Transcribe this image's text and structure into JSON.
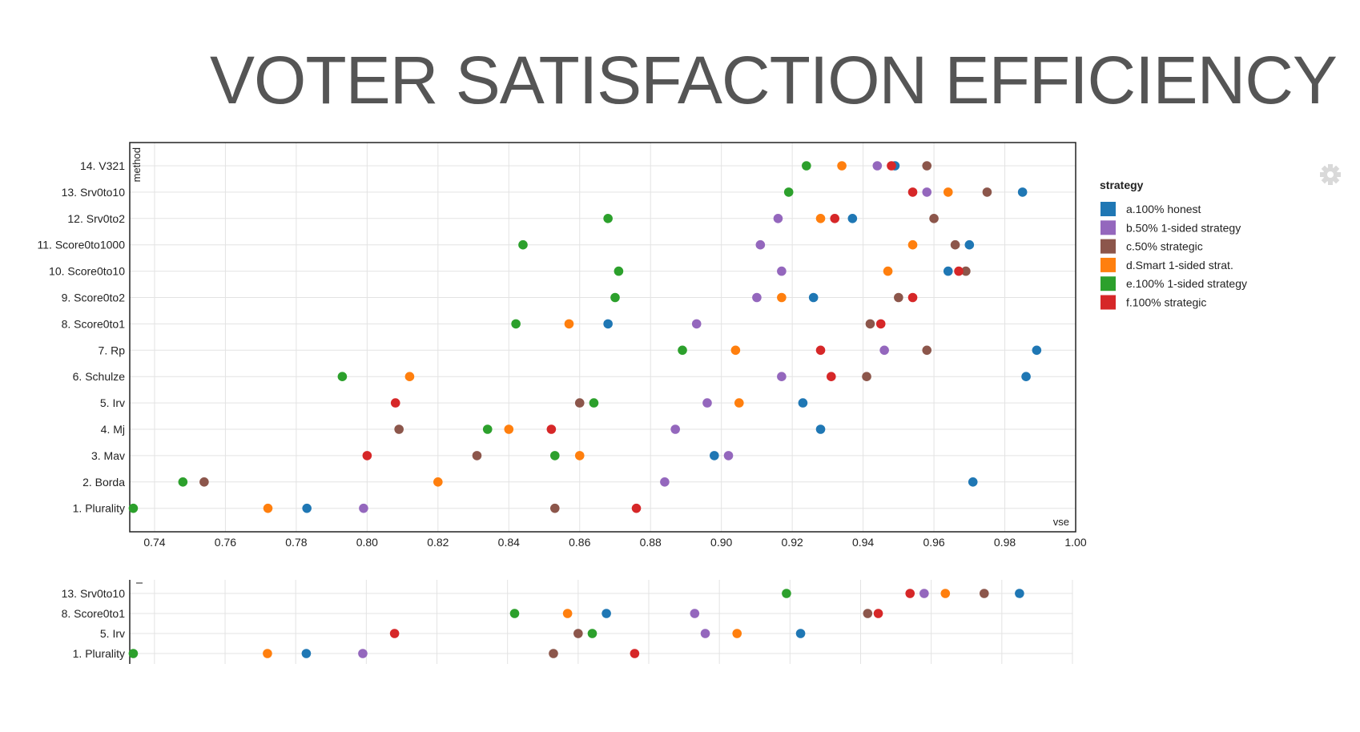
{
  "slide": {
    "title": "VOTER SATISFACTION EFFICIENCY"
  },
  "icons": {
    "settings": "gear-icon"
  },
  "colors": {
    "a.100% honest": "#1f77b4",
    "b.50% 1-sided strategy": "#9467bd",
    "c.50% strategic": "#8c564b",
    "d.Smart 1-sided strat.": "#ff7f0e",
    "e.100% 1-sided strategy": "#2ca02c",
    "f.100% strategic": "#d62728"
  },
  "legend": {
    "title": "strategy",
    "entries": [
      {
        "key": "a.100% honest",
        "label": "a.100% honest"
      },
      {
        "key": "b.50% 1-sided strategy",
        "label": "b.50% 1-sided strategy"
      },
      {
        "key": "c.50% strategic",
        "label": "c.50% strategic"
      },
      {
        "key": "d.Smart 1-sided strat.",
        "label": "d.Smart 1-sided strat."
      },
      {
        "key": "e.100% 1-sided strategy",
        "label": "e.100% 1-sided strategy"
      },
      {
        "key": "f.100% strategic",
        "label": "f.100% strategic"
      }
    ]
  },
  "chart_data": [
    {
      "type": "scatter",
      "xlabel": "vse",
      "ylabel": "method",
      "xlim": [
        0.733,
        1.0
      ],
      "xticks": [
        "0.74",
        "0.76",
        "0.78",
        "0.80",
        "0.82",
        "0.84",
        "0.86",
        "0.88",
        "0.90",
        "0.92",
        "0.94",
        "0.96",
        "0.98",
        "1.00"
      ],
      "grid": true,
      "legend_position": "right",
      "categories": [
        "14. V321",
        "13. Srv0to10",
        "12. Srv0to2",
        "11. Score0to1000",
        "10. Score0to10",
        "9. Score0to2",
        "8. Score0to1",
        "7. Rp",
        "6. Schulze",
        "5. Irv",
        "4. Mj",
        "3. Mav",
        "2. Borda",
        "1. Plurality"
      ],
      "series": [
        {
          "name": "a.100% honest",
          "values": [
            0.949,
            0.985,
            0.937,
            0.97,
            0.964,
            0.926,
            0.868,
            0.989,
            0.986,
            0.923,
            0.928,
            0.898,
            0.971,
            0.783
          ]
        },
        {
          "name": "b.50% 1-sided strategy",
          "values": [
            0.944,
            0.958,
            0.916,
            0.911,
            0.917,
            0.91,
            0.893,
            0.946,
            0.917,
            0.896,
            0.887,
            0.902,
            0.884,
            0.799
          ]
        },
        {
          "name": "c.50% strategic",
          "values": [
            0.958,
            0.975,
            0.96,
            0.966,
            0.969,
            0.95,
            0.942,
            0.958,
            0.941,
            0.86,
            0.809,
            0.831,
            0.754,
            0.853
          ]
        },
        {
          "name": "d.Smart 1-sided strat.",
          "values": [
            0.934,
            0.964,
            0.928,
            0.954,
            0.947,
            0.917,
            0.857,
            0.904,
            0.812,
            0.905,
            0.84,
            0.86,
            0.82,
            0.772
          ]
        },
        {
          "name": "e.100% 1-sided strategy",
          "values": [
            0.924,
            0.919,
            0.868,
            0.844,
            0.871,
            0.87,
            0.842,
            0.889,
            0.793,
            0.864,
            0.834,
            0.853,
            0.748,
            0.734
          ]
        },
        {
          "name": "f.100% strategic",
          "values": [
            0.948,
            0.954,
            0.932,
            null,
            0.967,
            0.954,
            0.945,
            0.928,
            0.931,
            0.808,
            0.852,
            0.8,
            null,
            0.876
          ]
        }
      ]
    },
    {
      "type": "scatter",
      "xlim": [
        0.733,
        1.0
      ],
      "grid": true,
      "categories": [
        "13. Srv0to10",
        "8. Score0to1",
        "5. Irv",
        "1. Plurality"
      ],
      "series": [
        {
          "name": "a.100% honest",
          "values": [
            0.985,
            0.868,
            0.923,
            0.783
          ]
        },
        {
          "name": "b.50% 1-sided strategy",
          "values": [
            0.958,
            0.893,
            0.896,
            0.799
          ]
        },
        {
          "name": "c.50% strategic",
          "values": [
            0.975,
            0.942,
            0.86,
            0.853
          ]
        },
        {
          "name": "d.Smart 1-sided strat.",
          "values": [
            0.964,
            0.857,
            0.905,
            0.772
          ]
        },
        {
          "name": "e.100% 1-sided strategy",
          "values": [
            0.919,
            0.842,
            0.864,
            0.734
          ]
        },
        {
          "name": "f.100% strategic",
          "values": [
            0.954,
            0.945,
            0.808,
            0.876
          ]
        }
      ]
    }
  ]
}
